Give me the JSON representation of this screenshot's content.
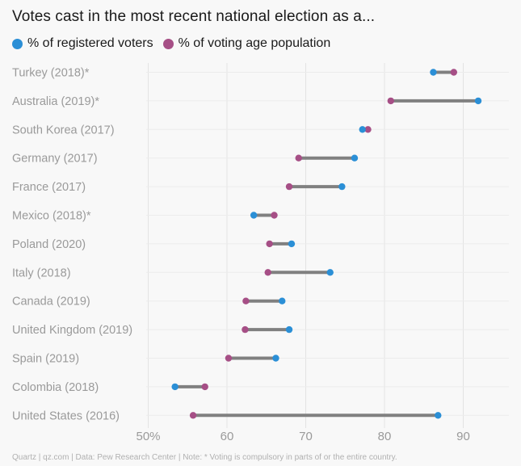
{
  "chart_data": {
    "type": "dumbbell",
    "title": "Votes cast in the most recent national election as a...",
    "series": [
      {
        "name": "% of registered voters",
        "color": "#2b8fd6"
      },
      {
        "name": "% of voting age population",
        "color": "#a64f86"
      }
    ],
    "xlim": [
      48,
      96
    ],
    "xticks": [
      50,
      60,
      70,
      80,
      90
    ],
    "xtick_labels": [
      "50%",
      "60",
      "70",
      "80",
      "90"
    ],
    "categories": [
      "Turkey (2018)*",
      "Australia (2019)*",
      "South Korea (2017)",
      "Germany (2017)",
      "France (2017)",
      "Mexico (2018)*",
      "Poland (2020)",
      "Italy (2018)",
      "Canada (2019)",
      "United Kingdom (2019)",
      "Spain (2019)",
      "Colombia (2018)",
      "United States (2016)"
    ],
    "registered": [
      86.2,
      91.9,
      77.2,
      76.2,
      74.6,
      63.4,
      68.2,
      73.1,
      67.0,
      67.9,
      66.2,
      53.4,
      86.8
    ],
    "vap": [
      88.8,
      80.8,
      77.9,
      69.1,
      67.9,
      66.0,
      65.4,
      65.2,
      62.4,
      62.3,
      60.2,
      57.2,
      55.7
    ],
    "line_color": "#808080"
  },
  "footer": "Quartz | qz.com | Data: Pew Research Center | Note: * Voting is compulsory in parts of or the entire country."
}
